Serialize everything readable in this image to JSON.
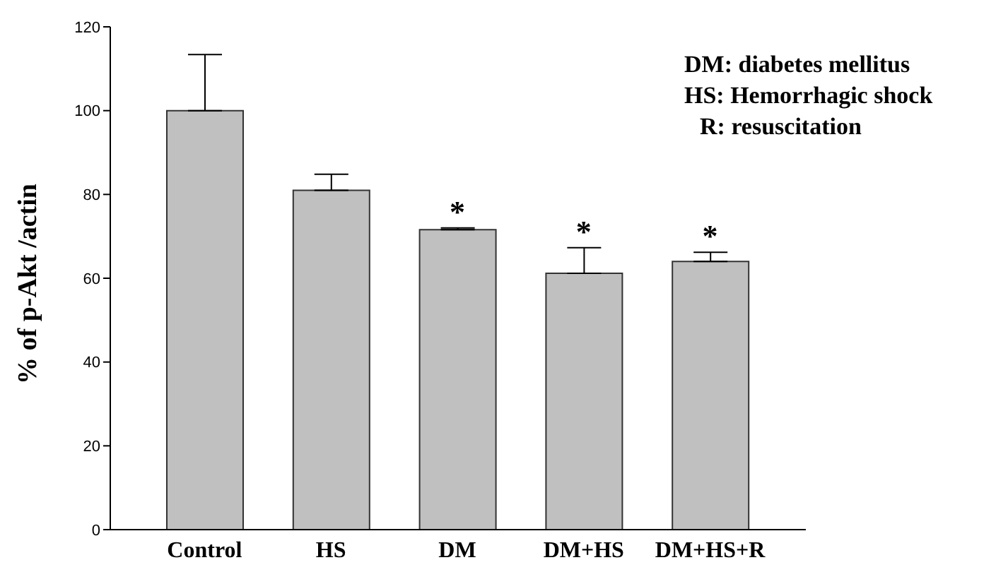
{
  "chart_data": {
    "type": "bar",
    "ylabel": "% of p-Akt /actin",
    "categories": [
      "Control",
      "HS",
      "DM",
      "DM+HS",
      "DM+HS+R"
    ],
    "values": [
      100,
      81,
      71.6,
      61.2,
      64
    ],
    "errors": [
      [
        100,
        113.4
      ],
      [
        81,
        84.8
      ],
      [
        71.6,
        72
      ],
      [
        61.2,
        67.3
      ],
      [
        64,
        66.2
      ]
    ],
    "color": "#c0c0c0",
    "ylim": [
      0,
      120
    ],
    "yticks": [
      0,
      20,
      40,
      60,
      80,
      100,
      120
    ],
    "grid": false,
    "legend": false,
    "annotations": [
      "DM: diabetes mellitus",
      "HS: Hemorrhagic shock",
      "R: resuscitation",
      {
        "text": "*",
        "x": "DM",
        "y": 72
      },
      {
        "text": "*",
        "x": "DM+HS",
        "y": 67.3
      },
      {
        "text": "*",
        "x": "DM+HS+R",
        "y": 66.2
      }
    ]
  }
}
